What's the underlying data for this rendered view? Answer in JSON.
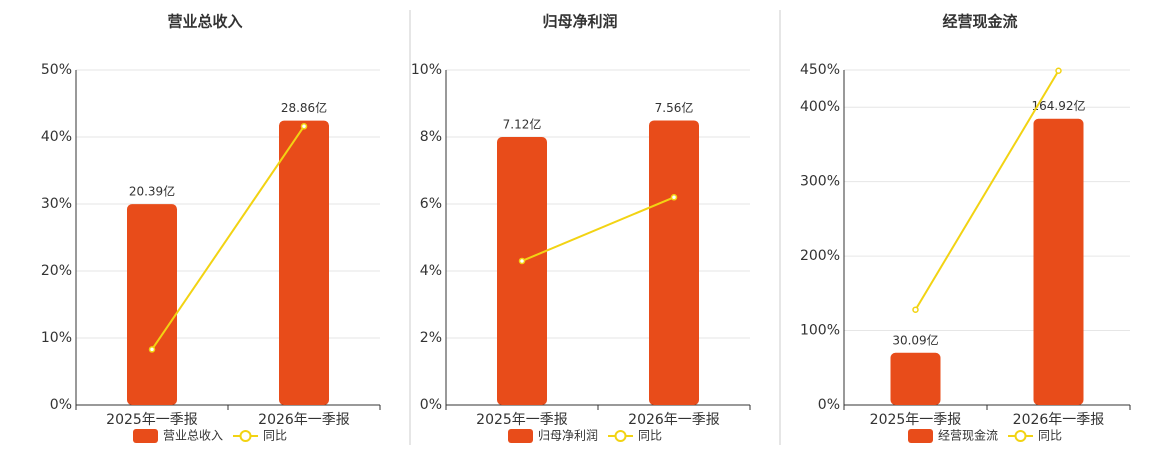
{
  "chart_data": [
    {
      "type": "bar-line",
      "title": "营业总收入",
      "categories": [
        "2025年一季报",
        "2026年一季报"
      ],
      "series": [
        {
          "name": "营业总收入",
          "color": "#e84c1a",
          "axis": "y2",
          "values": [
            20.39,
            28.86
          ],
          "value_labels": [
            "20.39亿",
            "28.86亿"
          ]
        },
        {
          "name": "同比",
          "color": "#f2d313",
          "values": [
            8.3,
            41.6
          ]
        }
      ],
      "ylim": [
        0,
        50
      ],
      "yticks": [
        {
          "value": 0,
          "label": "0%"
        },
        {
          "value": 10,
          "label": "10%"
        },
        {
          "value": 20,
          "label": "20%"
        },
        {
          "value": 30,
          "label": "30%"
        },
        {
          "value": 40,
          "label": "40%"
        },
        {
          "value": 50,
          "label": "50%"
        }
      ],
      "y2lim": [
        0,
        34
      ],
      "grid": true
    },
    {
      "type": "bar-line",
      "title": "归母净利润",
      "categories": [
        "2025年一季报",
        "2026年一季报"
      ],
      "series": [
        {
          "name": "归母净利润",
          "color": "#e84c1a",
          "axis": "y2",
          "values": [
            7.12,
            7.56
          ],
          "value_labels": [
            "7.12亿",
            "7.56亿"
          ]
        },
        {
          "name": "同比",
          "color": "#f2d313",
          "values": [
            4.3,
            6.2
          ]
        }
      ],
      "ylim": [
        0,
        10
      ],
      "yticks": [
        {
          "value": 0,
          "label": "0%"
        },
        {
          "value": 2,
          "label": "2%"
        },
        {
          "value": 4,
          "label": "4%"
        },
        {
          "value": 6,
          "label": "6%"
        },
        {
          "value": 8,
          "label": "8%"
        },
        {
          "value": 10,
          "label": "10%"
        }
      ],
      "y2lim": [
        0,
        8.9
      ],
      "grid": true
    },
    {
      "type": "bar-line",
      "title": "经营现金流",
      "categories": [
        "2025年一季报",
        "2026年一季报"
      ],
      "series": [
        {
          "name": "经营现金流",
          "color": "#e84c1a",
          "axis": "y2",
          "values": [
            30.09,
            164.92
          ],
          "value_labels": [
            "30.09亿",
            "164.92亿"
          ]
        },
        {
          "name": "同比",
          "color": "#f2d313",
          "values": [
            128,
            449
          ]
        }
      ],
      "ylim": [
        0,
        450
      ],
      "yticks": [
        {
          "value": 0,
          "label": "0%"
        },
        {
          "value": 100,
          "label": "100%"
        },
        {
          "value": 200,
          "label": "200%"
        },
        {
          "value": 300,
          "label": "300%"
        },
        {
          "value": 400,
          "label": "400%"
        },
        {
          "value": 450,
          "label": "450%"
        }
      ],
      "y2lim": [
        0,
        193
      ],
      "grid": true
    }
  ]
}
